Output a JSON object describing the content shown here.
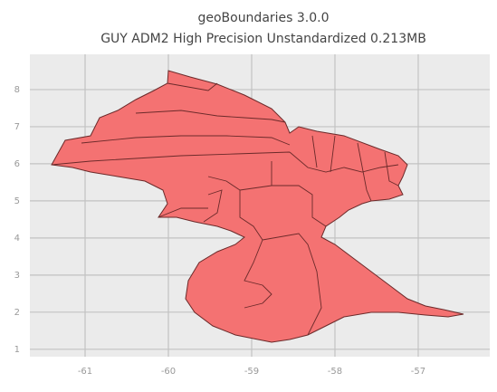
{
  "chart_data": {
    "type": "map",
    "title": "geoBoundaries 3.0.0",
    "subtitle": "GUY ADM2 High Precision Unstandardized 0.213MB",
    "xlim": [
      -61.663,
      -56.141
    ],
    "ylim": [
      0.8,
      8.95
    ],
    "xticks": [
      -61,
      -60,
      -59,
      -58,
      -57
    ],
    "yticks": [
      1,
      2,
      3,
      4,
      5,
      6,
      7,
      8
    ],
    "grid": true,
    "fill_color": "#f47272",
    "edge_color": "#6b2a2a"
  }
}
